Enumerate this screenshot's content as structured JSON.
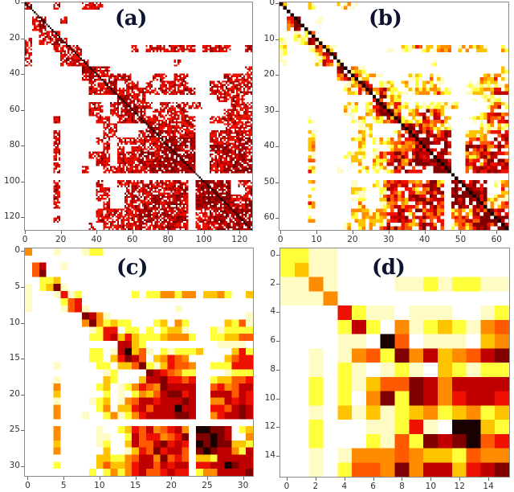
{
  "chart_data": [
    {
      "type": "heatmap",
      "panel_label": "(a)",
      "title": "",
      "size": 128,
      "xticks": [
        0,
        20,
        40,
        60,
        80,
        100,
        120
      ],
      "yticks": [
        0,
        20,
        40,
        60,
        80,
        100,
        120
      ],
      "xlim": [
        0,
        127
      ],
      "ylim": [
        127,
        0
      ],
      "colormap": "hot_r",
      "cluster_boundaries": [
        0,
        2,
        4,
        10,
        16,
        20,
        24,
        32,
        36,
        40,
        46,
        48,
        56,
        64,
        72,
        80,
        90,
        96,
        112,
        120,
        128
      ],
      "description": "128x128 sparse binary-like adjacency/correlation matrix, red cells with dark diagonal; block structure"
    },
    {
      "type": "heatmap",
      "panel_label": "(b)",
      "size": 64,
      "xticks": [
        0,
        10,
        20,
        30,
        40,
        50,
        60
      ],
      "yticks": [
        0,
        10,
        20,
        30,
        40,
        50,
        60
      ],
      "xlim": [
        0,
        63
      ],
      "ylim": [
        63,
        0
      ],
      "colormap": "hot_r",
      "description": "64x64 coarsened matrix, yellow-orange-red-dark red cells, block structure"
    },
    {
      "type": "heatmap",
      "panel_label": "(c)",
      "size": 32,
      "xticks": [
        0,
        5,
        10,
        15,
        20,
        25,
        30
      ],
      "yticks": [
        0,
        5,
        10,
        15,
        20,
        25,
        30
      ],
      "xlim": [
        0,
        31
      ],
      "ylim": [
        31,
        0
      ],
      "colormap": "hot_r",
      "level_scale": "0=white,1=pale yellow,2=yellow,3=gold,4=orange,5=red-orange,6=red,7=dark red,8=very dark red,9=black",
      "rows": [
        "40001000122000000000000000000000",
        "00000000000000000000000000000000",
        "05700100000000000000000000000000",
        "05800000000000000000000000000000",
        "00223000000000000000000000000000",
        "10238100000000000000000000000000",
        "10001612000000020224424403342003",
        "10000256000000000000000000000000",
        "10000156100000000000010000000000",
        "00000000874100000000000000000001",
        "00000000484232200023042000003251",
        "00000000012660220202331000212222",
        "00000000022673632223444200223355",
        "00000000000007732000000000011110",
        "00000000022017935102122230000362",
        "00000000022036875034654000003566",
        "00001000002203358213655400222666",
        "00000000000120000876542200001222",
        "00001000000320003778665600233556",
        "00004000002301246548777700564577",
        "00003000000201024357886700777576",
        "00001000012301457767778700447676",
        "00004000002403367577797700665787",
        "00004000100241246777788700467787",
        "00000000000000000000000000000000",
        "00004000001002365745674099887023",
        "00004000001100275664568088987004",
        "00003000001200375578676098988332",
        "00004000000300136586775089877427",
        "00000000003322457748565033277777",
        "00002000003533467757677066779877",
        "00000000020242467556766024477778"
      ]
    },
    {
      "type": "heatmap",
      "panel_label": "(d)",
      "size": 16,
      "xticks": [
        0,
        2,
        4,
        6,
        8,
        10,
        12,
        14
      ],
      "yticks": [
        0,
        2,
        4,
        6,
        8,
        10,
        12,
        14
      ],
      "xlim": [
        0,
        15
      ],
      "ylim": [
        15,
        0
      ],
      "colormap": "hot_r",
      "level_scale": "0=white,1=pale yellow,2=yellow,3=gold,4=orange,5=red-orange,6=red,7=dark red,8=very dark red,9=black",
      "rows": [
        "2211000000000000",
        "2311000000000000",
        "1141000011212211",
        "1114000000000000",
        "0000621101110012",
        "0000272041232145",
        "0000110950111034",
        "0010145284734578",
        "0010210121032122",
        "0020213558747777",
        "0020204828746776",
        "0010313123423423",
        "0020001126109932",
        "0020002152878956",
        "0010144454332544",
        "0010255484773678"
      ]
    }
  ],
  "palette": {
    "0": "#ffffff",
    "1": "#fffbc4",
    "2": "#ffff3a",
    "3": "#ffc400",
    "4": "#ff8c00",
    "5": "#ff5a00",
    "6": "#ee1000",
    "7": "#c00000",
    "8": "#800000",
    "9": "#1a0000"
  },
  "panels": {
    "a": {
      "label": "(a)"
    },
    "b": {
      "label": "(b)"
    },
    "c": {
      "label": "(c)"
    },
    "d": {
      "label": "(d)"
    }
  }
}
